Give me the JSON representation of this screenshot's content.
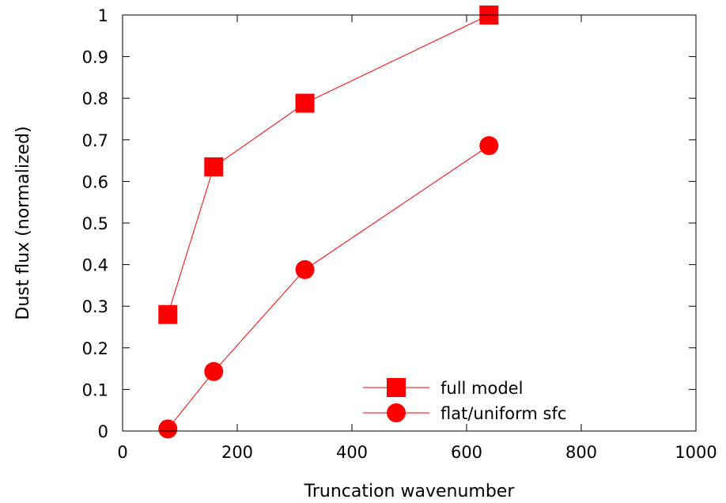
{
  "chart_data": {
    "type": "line",
    "title": "",
    "xlabel": "Truncation wavenumber",
    "ylabel": "Dust flux (normalized)",
    "xlim": [
      0,
      1000
    ],
    "ylim": [
      0,
      1
    ],
    "xticks": [
      0,
      200,
      400,
      600,
      800,
      1000
    ],
    "xtick_labels": [
      "0",
      "200",
      "400",
      "600",
      "800",
      "1000"
    ],
    "yticks": [
      0,
      0.1,
      0.2,
      0.3,
      0.4,
      0.5,
      0.6,
      0.7,
      0.8,
      0.9,
      1
    ],
    "ytick_labels": [
      "0",
      "0.1",
      "0.2",
      "0.3",
      "0.4",
      "0.5",
      "0.6",
      "0.7",
      "0.8",
      "0.9",
      "1"
    ],
    "grid": false,
    "legend_position": "bottom-right",
    "series": [
      {
        "name": "full model",
        "marker": "square",
        "color": "#ff0000",
        "x": [
          79,
          159,
          318,
          639
        ],
        "y": [
          0.28,
          0.635,
          0.788,
          1.0
        ]
      },
      {
        "name": "flat/uniform sfc",
        "marker": "circle",
        "color": "#ff0000",
        "x": [
          79,
          159,
          318,
          639
        ],
        "y": [
          0.005,
          0.143,
          0.388,
          0.686
        ]
      }
    ]
  }
}
